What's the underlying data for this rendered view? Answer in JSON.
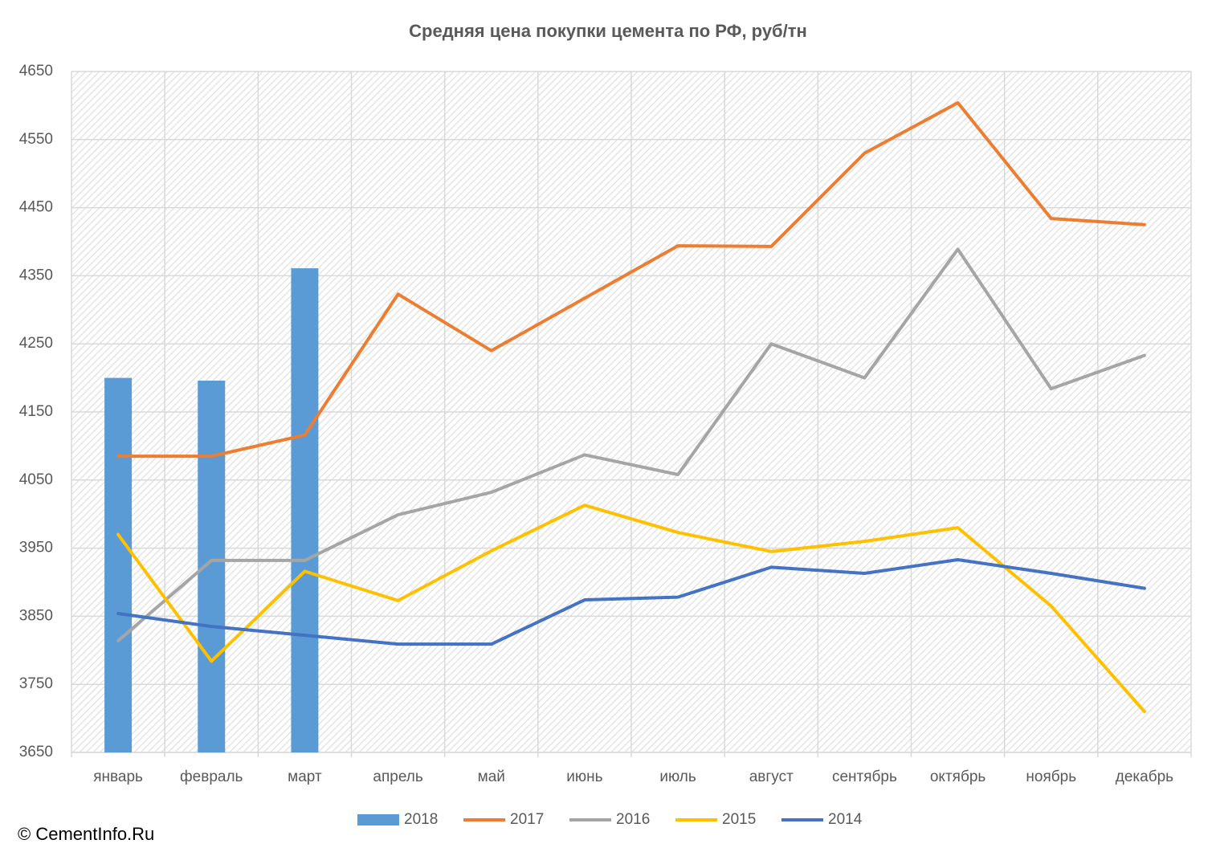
{
  "chart_data": {
    "type": "combo",
    "title": "Средняя цена покупки цемента по РФ, руб/тн",
    "source": "© CementInfo.Ru",
    "categories": [
      "январь",
      "февраль",
      "март",
      "апрель",
      "май",
      "июнь",
      "июль",
      "август",
      "сентябрь",
      "октябрь",
      "ноябрь",
      "декабрь"
    ],
    "series": [
      {
        "name": "2018",
        "type": "bar",
        "color": "#5b9bd5",
        "values": [
          4200,
          4196,
          4361,
          null,
          null,
          null,
          null,
          null,
          null,
          null,
          null,
          null
        ]
      },
      {
        "name": "2017",
        "type": "line",
        "color": "#ed7d31",
        "values": [
          4085,
          4085,
          4116,
          4323,
          4240,
          4317,
          4394,
          4393,
          4530,
          4604,
          4434,
          4425
        ]
      },
      {
        "name": "2016",
        "type": "line",
        "color": "#a5a5a5",
        "values": [
          3814,
          3932,
          3932,
          3999,
          4032,
          4087,
          4058,
          4250,
          4200,
          4389,
          4184,
          4233
        ]
      },
      {
        "name": "2015",
        "type": "line",
        "color": "#ffc000",
        "values": [
          3970,
          3784,
          3916,
          3873,
          3946,
          4013,
          3973,
          3945,
          3960,
          3980,
          3865,
          3710
        ]
      },
      {
        "name": "2014",
        "type": "line",
        "color": "#4472c4",
        "values": [
          3854,
          3835,
          3822,
          3809,
          3809,
          3874,
          3878,
          3922,
          3913,
          3933,
          3913,
          3891
        ]
      }
    ],
    "ylim": [
      3650,
      4650
    ],
    "yticks": [
      3650,
      3750,
      3850,
      3950,
      4050,
      4150,
      4250,
      4350,
      4450,
      4550,
      4650
    ],
    "grid": true,
    "legend": "bottom"
  }
}
